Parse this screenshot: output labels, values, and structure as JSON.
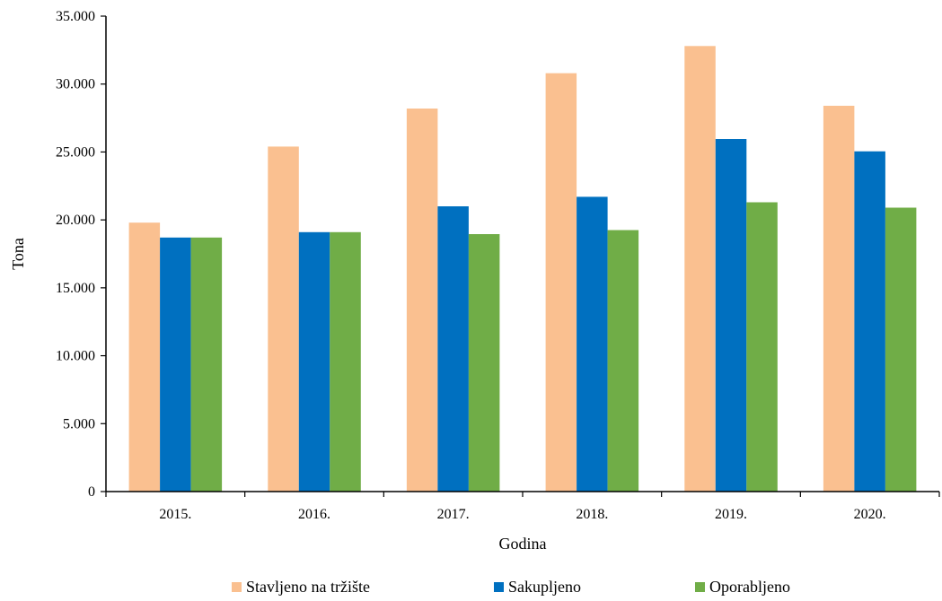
{
  "chart_data": {
    "type": "bar",
    "categories": [
      "2015.",
      "2016.",
      "2017.",
      "2018.",
      "2019.",
      "2020."
    ],
    "series": [
      {
        "name": "Stavljeno na tržište",
        "color": "#FAC090",
        "values": [
          19800,
          25400,
          28200,
          30800,
          32800,
          28400
        ]
      },
      {
        "name": "Sakupljeno",
        "color": "#0070C0",
        "values": [
          18700,
          19100,
          21000,
          21700,
          25950,
          25050
        ]
      },
      {
        "name": "Oporabljeno",
        "color": "#70AD47",
        "values": [
          18700,
          19100,
          18950,
          19250,
          21300,
          20900
        ]
      }
    ],
    "xlabel": "Godina",
    "ylabel": "Tona",
    "ylim": [
      0,
      35000
    ],
    "yticks": [
      0,
      5000,
      10000,
      15000,
      20000,
      25000,
      30000,
      35000
    ],
    "ytick_labels": [
      "0",
      "5.000",
      "10.000",
      "15.000",
      "20.000",
      "25.000",
      "30.000",
      "35.000"
    ],
    "grid": false,
    "legend_position": "bottom"
  }
}
